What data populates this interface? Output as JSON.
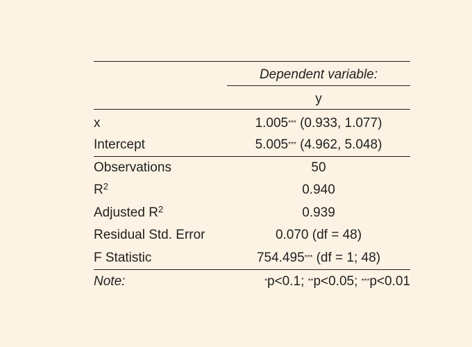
{
  "header": {
    "dependent_variable_label": "Dependent variable:",
    "dependent_variable_name": "y"
  },
  "coefficients": [
    {
      "label": "x",
      "estimate": "1.005",
      "stars": "***",
      "ci": " (0.933, 1.077)"
    },
    {
      "label": "Intercept",
      "estimate": "5.005",
      "stars": "***",
      "ci": " (4.962, 5.048)"
    }
  ],
  "stats": {
    "observations": {
      "label": "Observations",
      "value": "50"
    },
    "r2": {
      "label": "R",
      "label_sup": "2",
      "value": "0.940"
    },
    "adj_r2": {
      "label": "Adjusted R",
      "label_sup": "2",
      "value": "0.939"
    },
    "rse": {
      "label": "Residual Std. Error",
      "value": "0.070 (df = 48)"
    },
    "fstat": {
      "label": "F Statistic",
      "value": "754.495",
      "stars": "***",
      "suffix": " (df = 1; 48)"
    }
  },
  "note": {
    "label": "Note:",
    "star1": "*",
    "text1": "p<0.1; ",
    "star2": "**",
    "text2": "p<0.05; ",
    "star3": "***",
    "text3": "p<0.01"
  }
}
